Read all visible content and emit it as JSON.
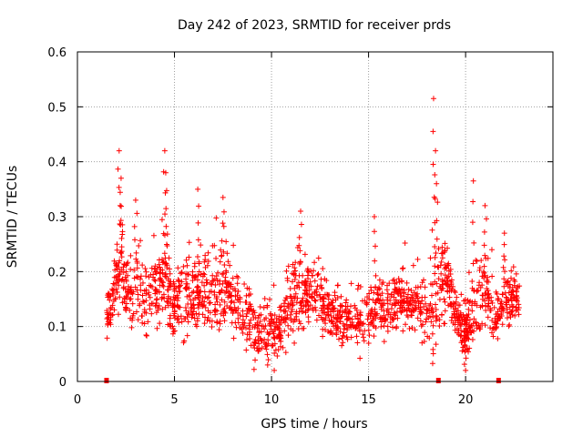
{
  "chart_data": {
    "type": "scatter",
    "title": "Day 242 of 2023, SRMTID for receiver prds",
    "xlabel": "GPS time / hours",
    "ylabel": "SRMTID / TECUs",
    "xlim": [
      0,
      24.5
    ],
    "ylim": [
      0,
      0.6
    ],
    "x_ticks": [
      0,
      5,
      10,
      15,
      20
    ],
    "y_ticks": [
      0,
      0.1,
      0.2,
      0.3,
      0.4,
      0.5,
      0.6
    ],
    "grid": true,
    "marker": "+",
    "color": "#ff0000",
    "series": [
      {
        "name": "SRMTID",
        "profile_x": [
          1.5,
          1.9,
          2.2,
          2.5,
          3.0,
          3.5,
          4.0,
          4.5,
          5.0,
          5.5,
          6.0,
          6.5,
          7.0,
          7.5,
          8.0,
          8.5,
          9.0,
          9.5,
          10.0,
          10.5,
          11.0,
          11.5,
          12.0,
          12.5,
          13.0,
          13.5,
          14.0,
          14.5,
          15.0,
          15.5,
          16.0,
          16.5,
          17.0,
          17.5,
          18.0,
          18.5,
          19.0,
          19.5,
          20.0,
          20.5,
          21.0,
          21.5,
          22.0,
          22.5,
          22.8
        ],
        "profile_mean": [
          0.11,
          0.17,
          0.22,
          0.16,
          0.18,
          0.15,
          0.16,
          0.18,
          0.14,
          0.16,
          0.15,
          0.17,
          0.18,
          0.17,
          0.15,
          0.12,
          0.1,
          0.09,
          0.09,
          0.1,
          0.15,
          0.16,
          0.16,
          0.15,
          0.12,
          0.11,
          0.11,
          0.11,
          0.12,
          0.14,
          0.13,
          0.15,
          0.15,
          0.14,
          0.12,
          0.15,
          0.18,
          0.12,
          0.09,
          0.14,
          0.17,
          0.11,
          0.14,
          0.15,
          0.15
        ],
        "profile_spread": [
          0.03,
          0.05,
          0.08,
          0.06,
          0.07,
          0.06,
          0.05,
          0.08,
          0.05,
          0.06,
          0.05,
          0.06,
          0.08,
          0.07,
          0.05,
          0.05,
          0.05,
          0.04,
          0.04,
          0.04,
          0.06,
          0.06,
          0.05,
          0.05,
          0.04,
          0.04,
          0.04,
          0.04,
          0.05,
          0.05,
          0.04,
          0.04,
          0.04,
          0.04,
          0.05,
          0.09,
          0.06,
          0.04,
          0.04,
          0.07,
          0.06,
          0.04,
          0.05,
          0.04,
          0.03
        ],
        "peaks": [
          {
            "x": 2.15,
            "y": 0.42
          },
          {
            "x": 2.25,
            "y": 0.37
          },
          {
            "x": 3.0,
            "y": 0.33
          },
          {
            "x": 4.5,
            "y": 0.42
          },
          {
            "x": 4.55,
            "y": 0.38
          },
          {
            "x": 6.2,
            "y": 0.35
          },
          {
            "x": 7.5,
            "y": 0.335
          },
          {
            "x": 11.5,
            "y": 0.31
          },
          {
            "x": 15.3,
            "y": 0.3
          },
          {
            "x": 18.35,
            "y": 0.515
          },
          {
            "x": 18.45,
            "y": 0.42
          },
          {
            "x": 18.5,
            "y": 0.36
          },
          {
            "x": 20.4,
            "y": 0.365
          },
          {
            "x": 21.0,
            "y": 0.32
          },
          {
            "x": 22.0,
            "y": 0.27
          },
          {
            "x": 20.0,
            "y": 0.02
          },
          {
            "x": 9.8,
            "y": 0.03
          }
        ],
        "n_points": 1800
      }
    ],
    "bottom_markers_x": [
      1.5,
      18.6,
      21.7
    ]
  }
}
